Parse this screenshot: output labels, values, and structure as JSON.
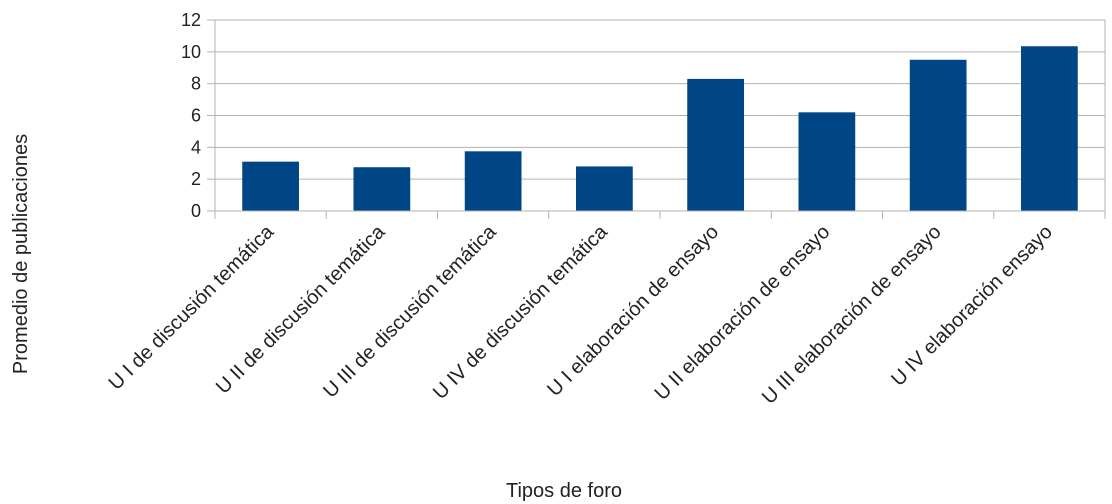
{
  "chart_data": {
    "type": "bar",
    "title": "",
    "xlabel": "Tipos de foro",
    "ylabel": "Promedio de publicaciones",
    "categories": [
      "U I de discusión temática",
      "U II de discusión temática",
      "U III de discusión temática",
      "U IV de discusión temática",
      "U I elaboración de ensayo",
      "U II elaboración de ensayo",
      "U III elaboración de ensayo",
      "U IV elaboración ensayo"
    ],
    "values": [
      3.1,
      2.75,
      3.75,
      2.8,
      8.3,
      6.2,
      9.5,
      10.35
    ],
    "ylim": [
      0,
      12
    ],
    "yticks": [
      0,
      2,
      4,
      6,
      8,
      10,
      12
    ],
    "grid": true,
    "legend": "none",
    "bar_color": "#004586"
  }
}
